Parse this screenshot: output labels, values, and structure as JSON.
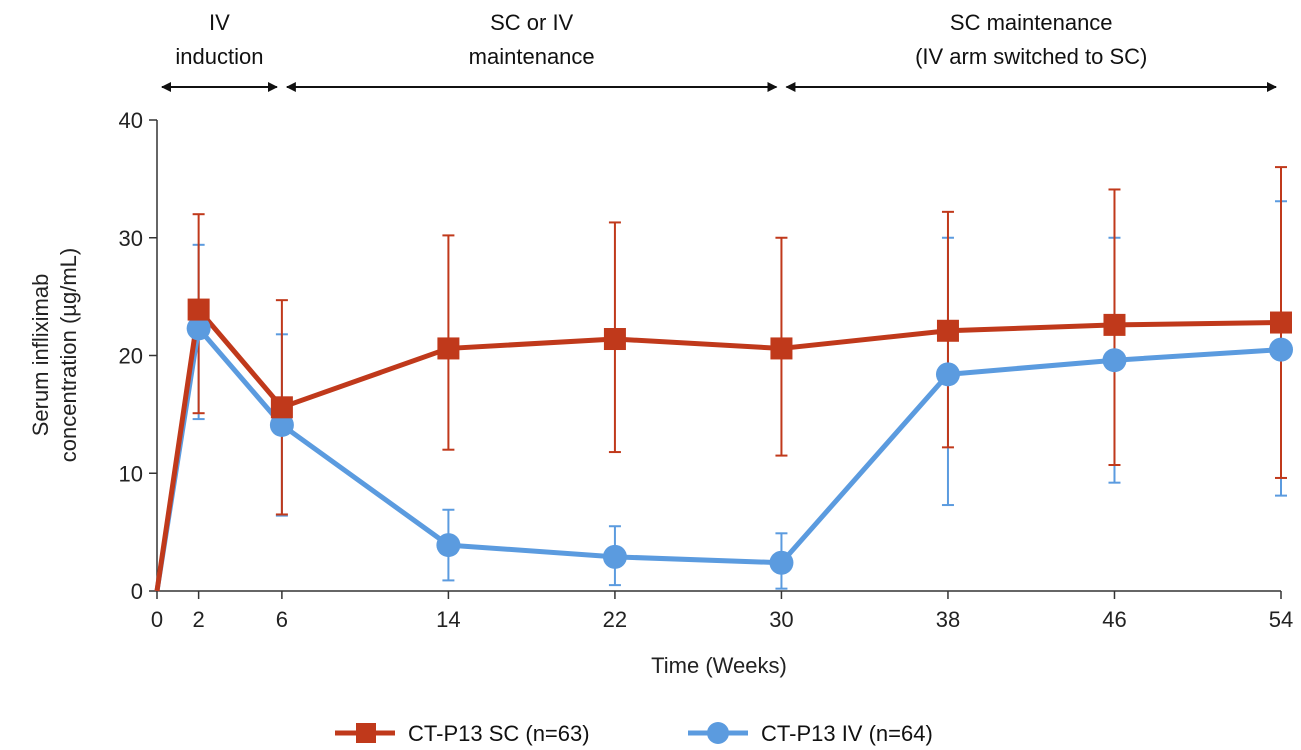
{
  "chart_data": {
    "type": "line",
    "xlabel": "Time (Weeks)",
    "ylabel_lines": [
      "Serum infliximab",
      "concentration (µg/mL)"
    ],
    "x_ticks": [
      0,
      2,
      6,
      14,
      22,
      30,
      38,
      46,
      54
    ],
    "y_ticks": [
      0,
      10,
      20,
      30,
      40
    ],
    "xlim": [
      0,
      54
    ],
    "ylim": [
      0,
      40
    ],
    "grid": false,
    "legend_position": "bottom-center",
    "phases": [
      {
        "lines": [
          "IV",
          "induction"
        ],
        "x_start": 0,
        "x_end": 6
      },
      {
        "lines": [
          "SC or IV",
          "maintenance"
        ],
        "x_start": 6,
        "x_end": 30
      },
      {
        "lines": [
          "SC maintenance",
          "(IV arm switched to SC)"
        ],
        "x_start": 30,
        "x_end": 54
      }
    ],
    "series": [
      {
        "name": "CT-P13 SC (n=63)",
        "color": "#c0391b",
        "marker": "square",
        "x": [
          0,
          2,
          6,
          14,
          22,
          30,
          38,
          46,
          54
        ],
        "y": [
          0,
          23.9,
          15.6,
          20.6,
          21.4,
          20.6,
          22.1,
          22.6,
          22.8
        ],
        "err_low": [
          null,
          15.1,
          6.5,
          12.0,
          11.8,
          11.5,
          12.2,
          10.7,
          9.6
        ],
        "err_high": [
          null,
          32.0,
          24.7,
          30.2,
          31.3,
          30.0,
          32.2,
          34.1,
          36.0
        ]
      },
      {
        "name": "CT-P13 IV (n=64)",
        "color": "#5b9bdf",
        "marker": "circle",
        "x": [
          0,
          2,
          6,
          14,
          22,
          30,
          38,
          46,
          54
        ],
        "y": [
          0,
          22.3,
          14.1,
          3.9,
          2.9,
          2.4,
          18.4,
          19.6,
          20.5
        ],
        "err_low": [
          null,
          14.6,
          6.4,
          0.9,
          0.5,
          0.2,
          7.3,
          9.2,
          8.1
        ],
        "err_high": [
          null,
          29.4,
          21.8,
          6.9,
          5.5,
          4.9,
          30.0,
          30.0,
          33.1
        ]
      }
    ]
  }
}
